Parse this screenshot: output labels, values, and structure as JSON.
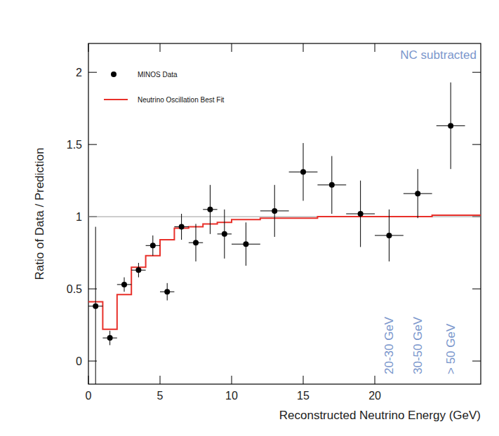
{
  "chart_data": {
    "type": "scatter",
    "x_label": "Reconstructed Neutrino Energy (GeV)",
    "y_label": "Ratio of Data / Prediction",
    "xlim": [
      0,
      27.4
    ],
    "ylim": [
      -0.16,
      2.2
    ],
    "xticks": [
      0,
      5,
      10,
      15,
      20
    ],
    "yticks": [
      0,
      0.5,
      1,
      1.5,
      2
    ],
    "grid": false,
    "legend": "upper left",
    "reference_line": 1,
    "annotations": [
      {
        "text": "NC subtracted"
      },
      {
        "text": "20-30 GeV",
        "x": 21
      },
      {
        "text": "30-50 GeV",
        "x": 23
      },
      {
        "text": "> 50 GeV",
        "x": 25.3
      }
    ],
    "series": [
      {
        "name": "MINOS Data",
        "type": "scatter",
        "color": "#000000",
        "marker": "circle",
        "x": [
          0.5,
          1.5,
          2.5,
          3.5,
          4.5,
          5.5,
          6.5,
          7.5,
          8.5,
          9.5,
          11,
          13,
          15,
          17,
          19,
          21,
          23,
          25.3
        ],
        "values": [
          0.38,
          0.16,
          0.53,
          0.63,
          0.8,
          0.48,
          0.93,
          0.82,
          1.05,
          0.88,
          0.81,
          1.04,
          1.31,
          1.22,
          1.02,
          0.87,
          1.16,
          1.63
        ],
        "errors": [
          0.55,
          0.05,
          0.05,
          0.05,
          0.07,
          0.06,
          0.09,
          0.13,
          0.17,
          0.17,
          0.15,
          0.18,
          0.2,
          0.2,
          0.23,
          0.18,
          0.17,
          0.3
        ],
        "x_errors": [
          0.5,
          0.5,
          0.5,
          0.5,
          0.5,
          0.5,
          0.5,
          0.5,
          0.5,
          0.5,
          1,
          1,
          1,
          1,
          1,
          1,
          1,
          1
        ]
      },
      {
        "name": "Neutrino Oscillation Best Fit",
        "type": "step",
        "color": "#e8302a",
        "line_style": "solid",
        "bins": [
          0,
          1,
          2,
          3,
          4,
          5,
          6,
          7,
          8,
          9,
          10,
          12,
          14,
          16,
          18,
          20,
          22,
          24,
          27.4
        ],
        "values": [
          0.41,
          0.22,
          0.46,
          0.65,
          0.73,
          0.84,
          0.92,
          0.93,
          0.95,
          0.96,
          0.98,
          0.99,
          0.99,
          1.0,
          1.0,
          1.0,
          1.0,
          1.01
        ]
      }
    ]
  }
}
